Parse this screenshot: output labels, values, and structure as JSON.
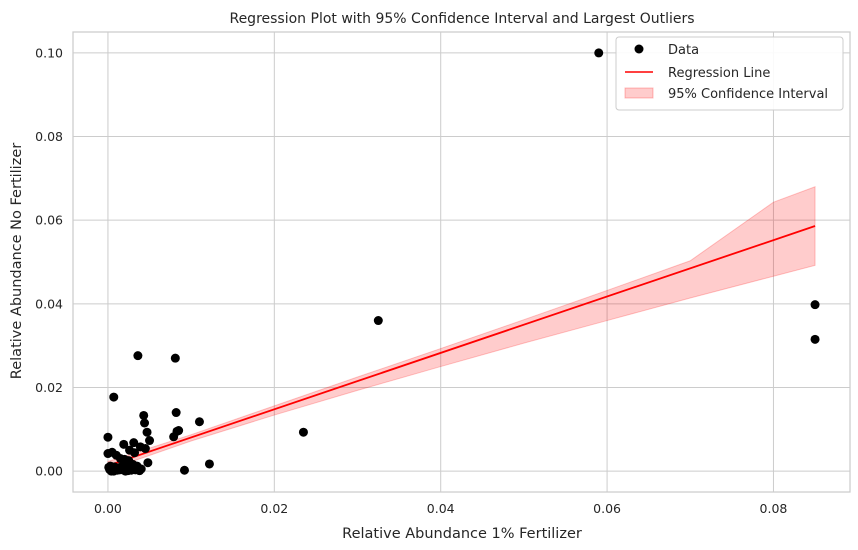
{
  "chart_data": {
    "type": "scatter",
    "title": "Regression Plot with 95% Confidence Interval and Largest Outliers",
    "xlabel": "Relative Abundance 1% Fertilizer",
    "ylabel": "Relative Abundance No Fertilizer",
    "xlim": [
      -0.0042,
      0.0892
    ],
    "ylim": [
      -0.005,
      0.105
    ],
    "grid": true,
    "legend_position": "top-right",
    "xticks": [
      0.0,
      0.02,
      0.04,
      0.06,
      0.08
    ],
    "xtick_labels": [
      "0.00",
      "0.02",
      "0.04",
      "0.06",
      "0.08"
    ],
    "yticks": [
      0.0,
      0.02,
      0.04,
      0.06,
      0.08,
      0.1
    ],
    "ytick_labels": [
      "0.00",
      "0.02",
      "0.04",
      "0.06",
      "0.08",
      "0.10"
    ],
    "colors": {
      "points": "#000000",
      "line": "#ff0000",
      "band": "#ff0000",
      "grid": "#cccccc",
      "axes": "#cccccc"
    },
    "series": [
      {
        "name": "Data",
        "kind": "scatter",
        "x": [
          0.059,
          0.085,
          0.085,
          0.0325,
          0.0235,
          0.0036,
          0.0081,
          0.0007,
          0.0082,
          0.011,
          0.0043,
          0.0044,
          0.0047,
          0.0083,
          0.0085,
          0.0079,
          0.005,
          0.0,
          0.0031,
          0.0039,
          0.0019,
          0.0026,
          0.0045,
          0.0032,
          0.0048,
          0.0122,
          0.0092,
          0.0,
          0.0005,
          0.001,
          0.0015,
          0.002,
          0.0025,
          0.003,
          0.0035,
          0.004,
          0.0008,
          0.0012,
          0.0018,
          0.0022,
          0.0028,
          0.0003,
          0.0006,
          0.0014,
          0.0017,
          0.0024,
          0.0001,
          0.0004,
          0.0009,
          0.0013,
          0.0021,
          0.0027,
          0.0002,
          0.0011,
          0.0016,
          0.0033,
          0.0038,
          0.0007,
          0.0019,
          0.0029
        ],
        "y": [
          0.1,
          0.0398,
          0.0315,
          0.036,
          0.0093,
          0.0276,
          0.027,
          0.0177,
          0.014,
          0.0118,
          0.0133,
          0.0115,
          0.0093,
          0.0095,
          0.0097,
          0.0082,
          0.0073,
          0.0081,
          0.0068,
          0.0058,
          0.0064,
          0.005,
          0.0054,
          0.0044,
          0.002,
          0.0017,
          0.0002,
          0.0042,
          0.0045,
          0.0038,
          0.003,
          0.0028,
          0.0025,
          0.0016,
          0.0012,
          0.0005,
          0.001,
          0.0006,
          0.0004,
          0.0009,
          0.0002,
          0.0012,
          0.0007,
          0.0003,
          0.0011,
          0.0001,
          0.0009,
          0.0,
          0.0005,
          0.0008,
          0.0,
          0.001,
          0.0004,
          0.0002,
          0.0006,
          0.0003,
          0.0001,
          0.0,
          0.0002,
          0.0004
        ]
      },
      {
        "name": "Regression Line",
        "kind": "line",
        "x": [
          0.0,
          0.085
        ],
        "y": [
          0.0013,
          0.0586
        ]
      },
      {
        "name": "95% Confidence Interval",
        "kind": "band",
        "x": [
          0.0,
          0.01,
          0.02,
          0.03,
          0.04,
          0.05,
          0.06,
          0.07,
          0.08,
          0.085
        ],
        "lower": [
          0.0003,
          0.0072,
          0.0134,
          0.0193,
          0.025,
          0.0306,
          0.036,
          0.0414,
          0.0466,
          0.0492
        ],
        "upper": [
          0.0023,
          0.0087,
          0.0156,
          0.0225,
          0.0293,
          0.0362,
          0.0432,
          0.0503,
          0.0643,
          0.068
        ]
      }
    ]
  }
}
